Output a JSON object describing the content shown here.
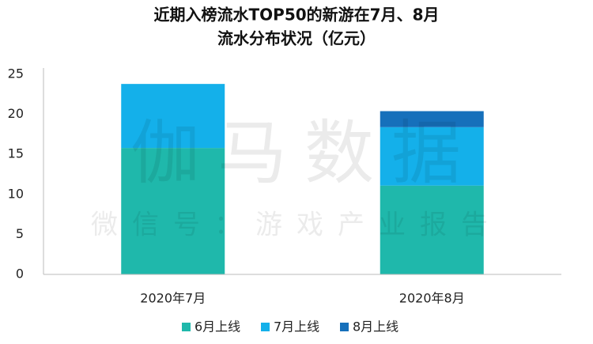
{
  "chart_data": {
    "type": "stacked_bar",
    "title": [
      "近期入榜流水TOP50的新游在7月、8月",
      "流水分布状况（亿元）"
    ],
    "watermark": [
      "伽马数据",
      "微信号：游戏产业报告"
    ],
    "categories": [
      "2020年7月",
      "2020年8月"
    ],
    "series": [
      {
        "name": "6月上线",
        "color": "#1fb8ab",
        "values": [
          15.8,
          11.1
        ]
      },
      {
        "name": "7月上线",
        "color": "#14b0ea",
        "values": [
          8.0,
          7.3
        ]
      },
      {
        "name": "8月上线",
        "color": "#1670bb",
        "values": [
          null,
          2.0
        ]
      }
    ],
    "ylim": [
      0,
      25
    ],
    "yticks": [
      0,
      5,
      10,
      15,
      20,
      25
    ],
    "grid": false,
    "legend": "bottom"
  }
}
